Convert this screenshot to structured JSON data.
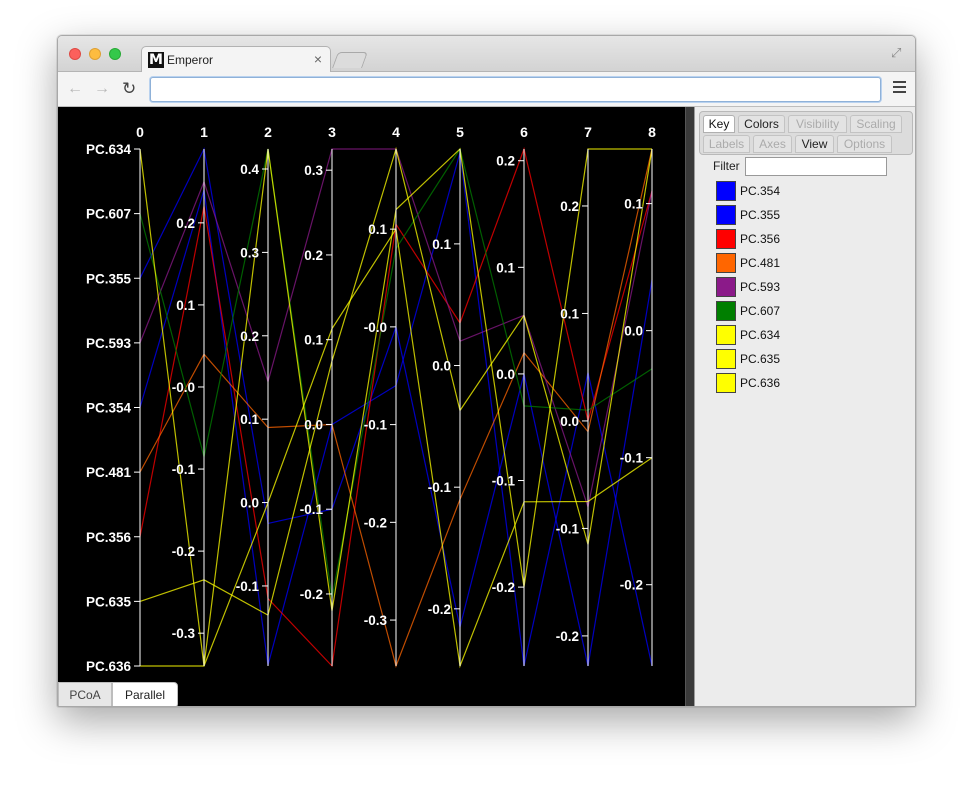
{
  "browser": {
    "tab_title": "Emperor",
    "tab_favicon": "M",
    "tab_close": "×",
    "omnibox_value": ""
  },
  "view_tabs": [
    "PCoA",
    "Parallel"
  ],
  "menu_tabs": [
    {
      "label": "Key",
      "state": "active"
    },
    {
      "label": "Colors",
      "state": "enabled"
    },
    {
      "label": "Visibility",
      "state": "disabled"
    },
    {
      "label": "Scaling",
      "state": "disabled"
    },
    {
      "label": "Labels",
      "state": "disabled"
    },
    {
      "label": "Axes",
      "state": "disabled"
    },
    {
      "label": "View",
      "state": "enabled"
    },
    {
      "label": "Options",
      "state": "disabled"
    }
  ],
  "filter": {
    "label": "Filter",
    "value": ""
  },
  "legend": [
    {
      "label": "PC.354",
      "color": "#0000ff"
    },
    {
      "label": "PC.355",
      "color": "#0000ff"
    },
    {
      "label": "PC.356",
      "color": "#ff0000"
    },
    {
      "label": "PC.481",
      "color": "#ff6600"
    },
    {
      "label": "PC.593",
      "color": "#8b1a89"
    },
    {
      "label": "PC.607",
      "color": "#007f00"
    },
    {
      "label": "PC.634",
      "color": "#ffff00"
    },
    {
      "label": "PC.635",
      "color": "#ffff00"
    },
    {
      "label": "PC.636",
      "color": "#ffff00"
    }
  ],
  "chart_data": {
    "type": "parallel-coordinates",
    "axes": [
      "0",
      "1",
      "2",
      "3",
      "4",
      "5",
      "6",
      "7",
      "8"
    ],
    "axis_ranges": [
      null,
      [
        -0.34,
        0.29
      ],
      [
        -0.196,
        0.424
      ],
      [
        -0.285,
        0.325
      ],
      [
        -0.347,
        0.182
      ],
      [
        -0.247,
        0.178
      ],
      [
        -0.274,
        0.211
      ],
      [
        -0.228,
        0.253
      ],
      [
        -0.264,
        0.143
      ]
    ],
    "axis_ticks": [
      [
        "PC.634",
        "PC.607",
        "PC.355",
        "PC.593",
        "PC.354",
        "PC.481",
        "PC.356",
        "PC.635",
        "PC.636"
      ],
      [
        "0.2",
        "0.1",
        "-0.0",
        "-0.1",
        "-0.2",
        "-0.3"
      ],
      [
        "0.4",
        "0.3",
        "0.2",
        "0.1",
        "0.0",
        "-0.1"
      ],
      [
        "0.3",
        "0.2",
        "0.1",
        "0.0",
        "-0.1",
        "-0.2"
      ],
      [
        "0.1",
        "-0.0",
        "-0.1",
        "-0.2",
        "-0.3"
      ],
      [
        "0.1",
        "0.0",
        "-0.1",
        "-0.2"
      ],
      [
        "0.2",
        "0.1",
        "0.0",
        "-0.1",
        "-0.2"
      ],
      [
        "0.2",
        "0.1",
        "0.0",
        "-0.1",
        "-0.2"
      ],
      [
        "0.1",
        "0.0",
        "-0.1",
        "-0.2"
      ]
    ],
    "tick_values": [
      [
        0,
        1,
        2,
        3,
        4,
        5,
        6,
        7,
        8
      ],
      [
        0.2,
        0.1,
        0.0,
        -0.1,
        -0.2,
        -0.3
      ],
      [
        0.4,
        0.3,
        0.2,
        0.1,
        0.0,
        -0.1
      ],
      [
        0.3,
        0.2,
        0.1,
        0.0,
        -0.1,
        -0.2
      ],
      [
        0.1,
        0.0,
        -0.1,
        -0.2,
        -0.3
      ],
      [
        0.1,
        0.0,
        -0.1,
        -0.2
      ],
      [
        0.2,
        0.1,
        0.0,
        -0.1,
        -0.2
      ],
      [
        0.2,
        0.1,
        0.0,
        -0.1,
        -0.2
      ],
      [
        0.1,
        0.0,
        -0.1,
        -0.2
      ]
    ],
    "series": [
      {
        "name": "PC.354",
        "color": "#0000ff",
        "values": [
          "PC.354",
          0.24,
          -0.195,
          0.0,
          -0.06,
          0.175,
          -0.274,
          0.045,
          -0.264
        ]
      },
      {
        "name": "PC.355",
        "color": "#0000ff",
        "values": [
          "PC.355",
          0.29,
          -0.025,
          -0.1,
          0.0,
          -0.215,
          0.0,
          -0.228,
          0.04
        ]
      },
      {
        "name": "PC.356",
        "color": "#ff0000",
        "values": [
          "PC.356",
          0.22,
          -0.115,
          -0.285,
          0.105,
          0.035,
          0.211,
          0.0,
          0.11
        ]
      },
      {
        "name": "PC.481",
        "color": "#ff6600",
        "values": [
          "PC.481",
          0.04,
          0.09,
          0.0,
          -0.347,
          -0.11,
          0.02,
          -0.01,
          0.143
        ]
      },
      {
        "name": "PC.593",
        "color": "#8b1a89",
        "values": [
          "PC.593",
          0.25,
          0.145,
          0.325,
          0.182,
          0.02,
          0.055,
          -0.08,
          0.11
        ]
      },
      {
        "name": "PC.607",
        "color": "#007f00",
        "values": [
          "PC.607",
          -0.085,
          0.424,
          -0.205,
          0.08,
          0.178,
          -0.03,
          0.01,
          -0.03
        ]
      },
      {
        "name": "PC.634",
        "color": "#ffff00",
        "values": [
          "PC.634",
          -0.34,
          0.424,
          -0.22,
          0.12,
          0.178,
          -0.2,
          0.253,
          0.143
        ]
      },
      {
        "name": "PC.635",
        "color": "#ffff00",
        "values": [
          "PC.635",
          -0.235,
          -0.135,
          0.075,
          0.182,
          -0.037,
          0.055,
          -0.115,
          0.143
        ]
      },
      {
        "name": "PC.636",
        "color": "#ffff00",
        "values": [
          "PC.636",
          -0.34,
          0.0,
          0.113,
          0.1,
          -0.247,
          -0.12,
          -0.075,
          -0.1
        ]
      }
    ],
    "background": "#000000",
    "grid": false
  }
}
